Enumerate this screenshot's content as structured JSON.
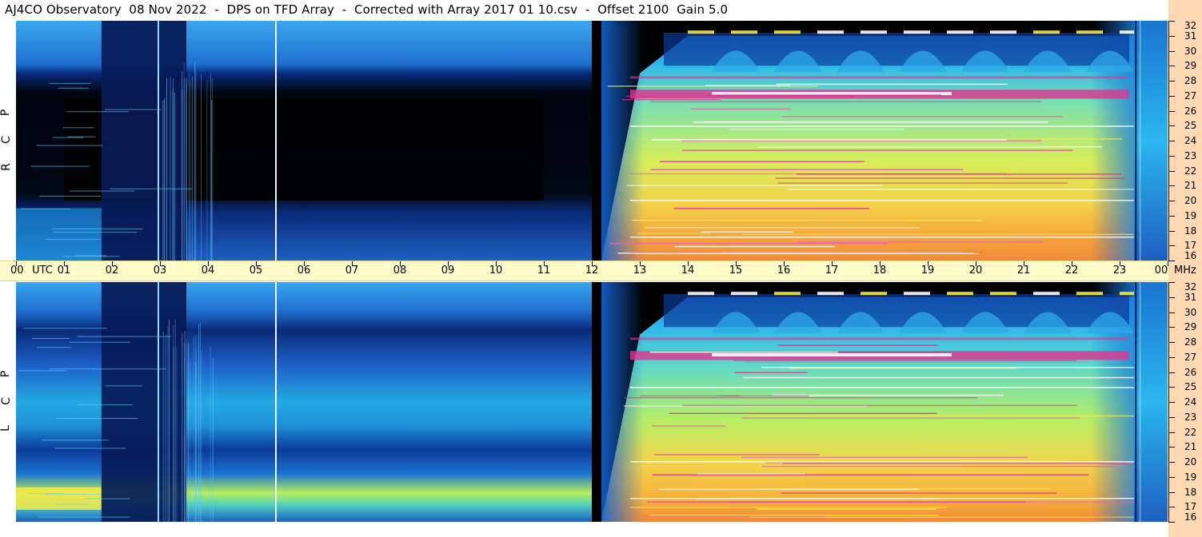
{
  "header": {
    "title": "AJ4CO Observatory  08 Nov 2022  -  DPS on TFD Array  -  Corrected with Array 2017 01 10.csv  -  Offset 2100  Gain 5.0"
  },
  "time_axis": {
    "hour_labels": [
      "00",
      "UTC",
      "01",
      "02",
      "03",
      "04",
      "05",
      "06",
      "07",
      "08",
      "09",
      "10",
      "11",
      "12",
      "13",
      "14",
      "15",
      "16",
      "17",
      "18",
      "19",
      "20",
      "21",
      "22",
      "23",
      "00",
      "MHz"
    ]
  },
  "freq_axis": {
    "labels": [
      "32",
      "31",
      "30",
      "29",
      "28",
      "27",
      "26",
      "25",
      "24",
      "23",
      "22",
      "21",
      "20",
      "19",
      "18",
      "17",
      "16"
    ]
  },
  "panels": {
    "top": {
      "polarization": [
        "R",
        "C",
        "P"
      ]
    },
    "bottom": {
      "polarization": [
        "L",
        "C",
        "P"
      ]
    }
  },
  "colors": {
    "background_dark": "#000000",
    "deep_blue": "#0a2a7a",
    "mid_blue": "#1f6fd0",
    "cyan": "#19b6ef",
    "green_yellow": "#b8f05a",
    "yellow": "#f4e84a",
    "orange": "#f5a33a",
    "magenta": "#e0338f",
    "utc_band": "#fffbc9",
    "freq_band": "#ffd9b3"
  },
  "chart_data": {
    "type": "heatmap",
    "title": "AJ4CO Observatory  08 Nov 2022  -  DPS on TFD Array  -  Corrected with Array 2017 01 10.csv  -  Offset 2100  Gain 5.0",
    "xlabel": "UTC",
    "ylabel": "MHz",
    "xlim": [
      0,
      24
    ],
    "ylim": [
      16,
      32
    ],
    "panels": [
      "RCP",
      "LCP"
    ],
    "xticks": [
      0,
      1,
      2,
      3,
      4,
      5,
      6,
      7,
      8,
      9,
      10,
      11,
      12,
      13,
      14,
      15,
      16,
      17,
      18,
      19,
      20,
      21,
      22,
      23,
      24
    ],
    "yticks": [
      16,
      17,
      18,
      19,
      20,
      21,
      22,
      23,
      24,
      25,
      26,
      27,
      28,
      29,
      30,
      31,
      32
    ],
    "colorscale": [
      "black",
      "blue",
      "cyan",
      "green",
      "yellow",
      "orange",
      "magenta",
      "white"
    ]
  }
}
